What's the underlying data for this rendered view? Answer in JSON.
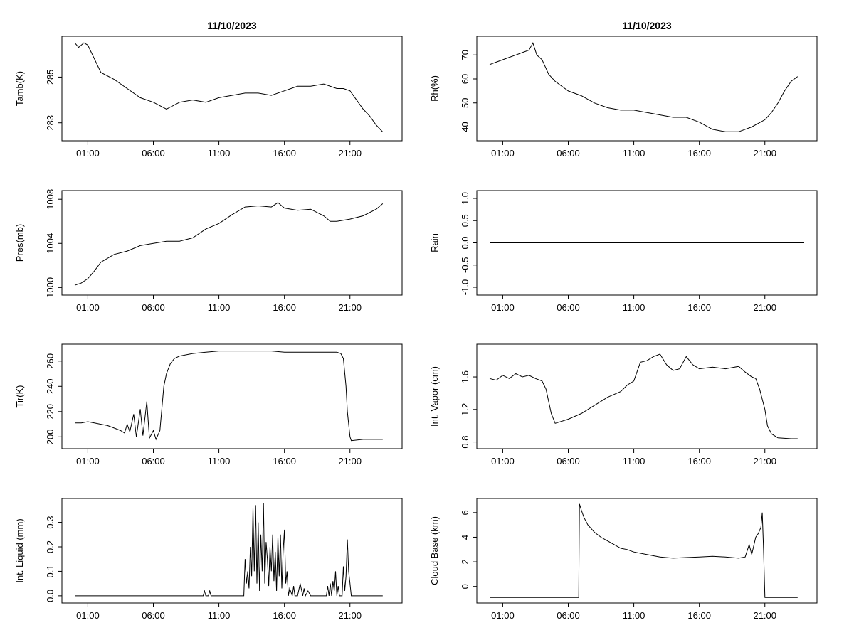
{
  "chart_data": [
    {
      "type": "line",
      "title": "11/10/2023",
      "ylabel": "Tamb(K)",
      "xticks": [
        "01:00",
        "06:00",
        "11:00",
        "16:00",
        "21:00"
      ],
      "xlim": [
        0,
        24
      ],
      "ylim": [
        282.4,
        286.6
      ],
      "yticks": [
        283,
        285
      ],
      "yticklabels": [
        "283",
        "285"
      ],
      "series": [
        {
          "name": "Tamb",
          "x": [
            0,
            0.3,
            0.7,
            1.0,
            1.5,
            2.0,
            3.0,
            4.0,
            5.0,
            6.0,
            7.0,
            8.0,
            9.0,
            10.0,
            11.0,
            12.0,
            13.0,
            14.0,
            15.0,
            16.0,
            17.0,
            18.0,
            19.0,
            20.0,
            20.5,
            21.0,
            21.5,
            22.0,
            22.5,
            23.0,
            23.5
          ],
          "y": [
            286.5,
            286.3,
            286.5,
            286.4,
            285.8,
            285.2,
            284.9,
            284.5,
            284.1,
            283.9,
            283.6,
            283.9,
            284.0,
            283.9,
            284.1,
            284.2,
            284.3,
            284.3,
            284.2,
            284.4,
            284.6,
            284.6,
            284.7,
            284.5,
            284.5,
            284.4,
            284.0,
            283.6,
            283.3,
            282.9,
            282.6
          ]
        }
      ]
    },
    {
      "type": "line",
      "title": "11/10/2023",
      "ylabel": "Rh(%)",
      "xticks": [
        "01:00",
        "06:00",
        "11:00",
        "16:00",
        "21:00"
      ],
      "xlim": [
        0,
        24
      ],
      "ylim": [
        36,
        76
      ],
      "yticks": [
        40,
        50,
        60,
        70
      ],
      "yticklabels": [
        "40",
        "50",
        "60",
        "70"
      ],
      "series": [
        {
          "name": "Rh",
          "x": [
            0,
            0.5,
            1.0,
            1.5,
            2.0,
            2.5,
            3.0,
            3.3,
            3.6,
            4.0,
            4.5,
            5.0,
            6.0,
            7.0,
            8.0,
            9.0,
            10.0,
            11.0,
            12.0,
            13.0,
            14.0,
            15.0,
            16.0,
            17.0,
            18.0,
            19.0,
            20.0,
            21.0,
            21.5,
            22.0,
            22.5,
            23.0,
            23.5
          ],
          "y": [
            66,
            67,
            68,
            69,
            70,
            71,
            72,
            75,
            70,
            68,
            62,
            59,
            55,
            53,
            50,
            48,
            47,
            47,
            46,
            45,
            44,
            44,
            42,
            39,
            38,
            38,
            40,
            43,
            46,
            50,
            55,
            59,
            61
          ]
        }
      ]
    },
    {
      "type": "line",
      "title": "",
      "ylabel": "Pres(mb)",
      "xticks": [
        "01:00",
        "06:00",
        "11:00",
        "16:00",
        "21:00"
      ],
      "xlim": [
        0,
        24
      ],
      "ylim": [
        999.7,
        1008.4
      ],
      "yticks": [
        1000,
        1004,
        1008
      ],
      "yticklabels": [
        "1000",
        "1004",
        "1008"
      ],
      "series": [
        {
          "name": "Pres",
          "x": [
            0,
            0.5,
            1.0,
            1.5,
            2.0,
            3.0,
            4.0,
            5.0,
            6.0,
            7.0,
            8.0,
            9.0,
            10.0,
            11.0,
            12.0,
            13.0,
            14.0,
            15.0,
            15.5,
            16.0,
            17.0,
            18.0,
            19.0,
            19.5,
            20.0,
            21.0,
            22.0,
            23.0,
            23.5
          ],
          "y": [
            1000.2,
            1000.4,
            1000.8,
            1001.5,
            1002.3,
            1003.0,
            1003.3,
            1003.8,
            1004.0,
            1004.2,
            1004.2,
            1004.5,
            1005.3,
            1005.8,
            1006.6,
            1007.3,
            1007.4,
            1007.3,
            1007.7,
            1007.2,
            1007.0,
            1007.1,
            1006.5,
            1006.0,
            1006.0,
            1006.2,
            1006.5,
            1007.1,
            1007.6
          ]
        }
      ]
    },
    {
      "type": "line",
      "title": "",
      "ylabel": "Rain",
      "xticks": [
        "01:00",
        "06:00",
        "11:00",
        "16:00",
        "21:00"
      ],
      "xlim": [
        0,
        24
      ],
      "ylim": [
        -1.08,
        1.08
      ],
      "yticks": [
        -1.0,
        -0.5,
        0.0,
        0.5,
        1.0
      ],
      "yticklabels": [
        "-1.0",
        "-0.5",
        "0.0",
        "0.5",
        "1.0"
      ],
      "series": [
        {
          "name": "Rain",
          "x": [
            0,
            24
          ],
          "y": [
            0,
            0
          ]
        }
      ]
    },
    {
      "type": "line",
      "title": "",
      "ylabel": "Tir(K)",
      "xticks": [
        "01:00",
        "06:00",
        "11:00",
        "16:00",
        "21:00"
      ],
      "xlim": [
        0,
        24
      ],
      "ylim": [
        194,
        270
      ],
      "yticks": [
        200,
        220,
        240,
        260
      ],
      "yticklabels": [
        "200",
        "220",
        "240",
        "260"
      ],
      "series": [
        {
          "name": "Tir",
          "x": [
            0,
            0.5,
            1.0,
            1.5,
            2.0,
            2.5,
            3.0,
            3.5,
            3.8,
            4.0,
            4.2,
            4.5,
            4.7,
            5.0,
            5.2,
            5.5,
            5.7,
            6.0,
            6.2,
            6.5,
            6.8,
            7.0,
            7.3,
            7.6,
            8.0,
            9.0,
            10.0,
            11.0,
            12.0,
            13.0,
            14.0,
            15.0,
            16.0,
            17.0,
            18.0,
            19.0,
            20.0,
            20.3,
            20.5,
            20.7,
            20.8,
            21.0,
            21.1,
            22.0,
            23.0,
            23.5
          ],
          "y": [
            211,
            211,
            212,
            211,
            210,
            209,
            207,
            205,
            203,
            210,
            204,
            218,
            200,
            222,
            201,
            228,
            199,
            205,
            198,
            205,
            240,
            250,
            258,
            262,
            264,
            266,
            267,
            268,
            268,
            268,
            268,
            268,
            267,
            267,
            267,
            267,
            267,
            266,
            262,
            240,
            220,
            200,
            197,
            198,
            198,
            198
          ]
        }
      ]
    },
    {
      "type": "line",
      "title": "",
      "ylabel": "Int. Vapor (cm)",
      "xticks": [
        "01:00",
        "06:00",
        "11:00",
        "16:00",
        "21:00"
      ],
      "xlim": [
        0,
        24
      ],
      "ylim": [
        0.77,
        1.95
      ],
      "yticks": [
        0.8,
        1.2,
        1.6
      ],
      "yticklabels": [
        "0.8",
        "1.2",
        "1.6"
      ],
      "series": [
        {
          "name": "Int. Vapor",
          "x": [
            0,
            0.5,
            1.0,
            1.5,
            2.0,
            2.5,
            3.0,
            3.5,
            4.0,
            4.3,
            4.5,
            4.7,
            5.0,
            6.0,
            7.0,
            8.0,
            9.0,
            10.0,
            10.5,
            11.0,
            11.5,
            12.0,
            12.5,
            13.0,
            13.5,
            14.0,
            14.5,
            15.0,
            15.5,
            16.0,
            17.0,
            18.0,
            19.0,
            19.5,
            20.0,
            20.3,
            20.6,
            21.0,
            21.2,
            21.5,
            22.0,
            23.0,
            23.5
          ],
          "y": [
            1.58,
            1.56,
            1.62,
            1.58,
            1.64,
            1.6,
            1.62,
            1.58,
            1.55,
            1.45,
            1.3,
            1.15,
            1.03,
            1.08,
            1.15,
            1.25,
            1.35,
            1.42,
            1.5,
            1.55,
            1.78,
            1.8,
            1.85,
            1.88,
            1.75,
            1.68,
            1.7,
            1.85,
            1.75,
            1.7,
            1.72,
            1.7,
            1.73,
            1.66,
            1.6,
            1.58,
            1.45,
            1.2,
            1.0,
            0.9,
            0.85,
            0.84,
            0.84
          ]
        }
      ]
    },
    {
      "type": "line",
      "title": "",
      "ylabel": "Int. Liquid (mm)",
      "xticks": [
        "01:00",
        "06:00",
        "11:00",
        "16:00",
        "21:00"
      ],
      "xlim": [
        0,
        24
      ],
      "ylim": [
        -0.012,
        0.38
      ],
      "yticks": [
        0.0,
        0.1,
        0.2,
        0.3
      ],
      "yticklabels": [
        "0.0",
        "0.1",
        "0.2",
        "0.3"
      ],
      "series": [
        {
          "name": "Int. Liquid",
          "x": [
            0,
            9.8,
            9.9,
            10.0,
            10.2,
            10.3,
            10.4,
            12.8,
            12.9,
            13.0,
            13.1,
            13.2,
            13.3,
            13.4,
            13.5,
            13.6,
            13.7,
            13.8,
            13.9,
            14.0,
            14.1,
            14.2,
            14.3,
            14.4,
            14.5,
            14.6,
            14.7,
            14.8,
            14.9,
            15.0,
            15.1,
            15.2,
            15.3,
            15.4,
            15.5,
            15.6,
            15.7,
            15.8,
            15.9,
            16.0,
            16.1,
            16.2,
            16.3,
            16.4,
            16.6,
            16.7,
            16.8,
            17.0,
            17.2,
            17.4,
            17.5,
            17.6,
            17.8,
            18.0,
            19.2,
            19.3,
            19.4,
            19.5,
            19.6,
            19.7,
            19.8,
            19.9,
            20.0,
            20.1,
            20.2,
            20.4,
            20.5,
            20.6,
            20.7,
            20.8,
            20.9,
            21.0,
            21.1,
            22.0,
            23.0,
            23.5
          ],
          "y": [
            0,
            0,
            0.02,
            0,
            0,
            0.02,
            0,
            0,
            0,
            0.15,
            0.05,
            0.1,
            0.03,
            0.2,
            0.08,
            0.36,
            0.1,
            0.37,
            0.05,
            0.3,
            0.02,
            0.25,
            0.1,
            0.38,
            0.05,
            0.22,
            0.15,
            0.04,
            0.2,
            0.1,
            0.25,
            0.06,
            0.18,
            0.02,
            0.24,
            0.08,
            0.25,
            0.03,
            0.18,
            0.27,
            0.05,
            0.1,
            0,
            0.03,
            0,
            0.04,
            0,
            0,
            0.05,
            0,
            0.03,
            0,
            0.02,
            0,
            0,
            0.04,
            0,
            0.05,
            0,
            0.06,
            0.02,
            0.1,
            0,
            0.04,
            0,
            0,
            0.12,
            0.02,
            0.08,
            0.23,
            0.1,
            0.05,
            0,
            0,
            0,
            0
          ]
        }
      ]
    },
    {
      "type": "line",
      "title": "",
      "ylabel": "Cloud Base (km)",
      "xticks": [
        "01:00",
        "06:00",
        "11:00",
        "16:00",
        "21:00"
      ],
      "xlim": [
        0,
        24
      ],
      "ylim": [
        -1.0,
        6.8
      ],
      "yticks": [
        0,
        2,
        4,
        6
      ],
      "yticklabels": [
        "0",
        "2",
        "4",
        "6"
      ],
      "series": [
        {
          "name": "Cloud Base",
          "x": [
            0,
            6.8,
            6.85,
            7.0,
            7.2,
            7.5,
            8.0,
            8.5,
            9.0,
            9.5,
            10.0,
            10.5,
            11.0,
            12.0,
            13.0,
            14.0,
            15.0,
            16.0,
            17.0,
            18.0,
            19.0,
            19.5,
            19.8,
            20.0,
            20.3,
            20.5,
            20.7,
            20.8,
            20.9,
            21.0,
            21.1,
            22.0,
            23.0,
            23.5
          ],
          "y": [
            -0.9,
            -0.9,
            6.7,
            6.2,
            5.6,
            5.0,
            4.4,
            4.0,
            3.7,
            3.4,
            3.1,
            3.0,
            2.8,
            2.6,
            2.4,
            2.3,
            2.35,
            2.4,
            2.45,
            2.4,
            2.3,
            2.4,
            3.4,
            2.6,
            4.0,
            4.3,
            4.8,
            6.0,
            3.0,
            -0.9,
            -0.9,
            -0.9,
            -0.9,
            -0.9
          ]
        }
      ]
    }
  ]
}
